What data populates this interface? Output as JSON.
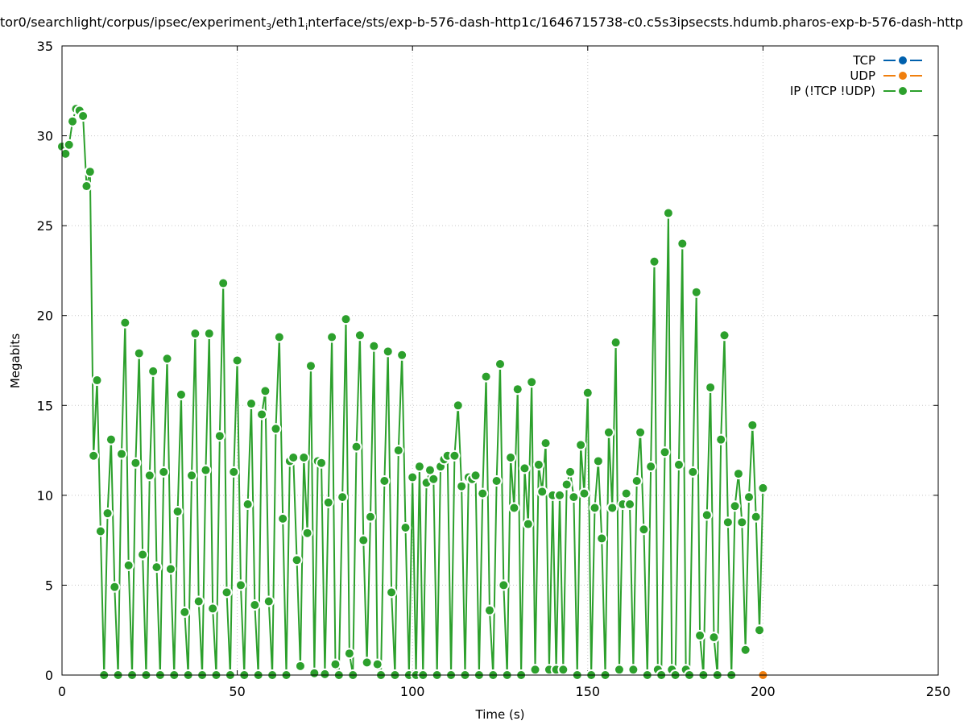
{
  "chart_data": {
    "type": "line",
    "title_parts": {
      "pre": "tor0/searchlight/corpus/ipsec/experiment",
      "sub1": "3",
      "mid": "/eth1",
      "sub2": "i",
      "post": "nterface/sts/exp-b-576-dash-http1c/1646715738-c0.c5s3ipsecsts.hdumb.pharos-exp-b-576-dash-http"
    },
    "xlabel": "Time (s)",
    "ylabel": "Megabits",
    "xlim": [
      0,
      250
    ],
    "ylim": [
      0,
      35
    ],
    "xticks": [
      0,
      50,
      100,
      150,
      200,
      250
    ],
    "yticks": [
      0,
      5,
      10,
      15,
      20,
      25,
      30,
      35
    ],
    "grid": true,
    "legend_position": "top-right",
    "series": [
      {
        "name": "TCP",
        "color": "#0060ad",
        "x_start": 0,
        "x_step": 1,
        "values": []
      },
      {
        "name": "UDP",
        "color": "#f07f0e",
        "x_start": 200,
        "x_step": 1,
        "values": [
          0
        ]
      },
      {
        "name": "IP (!TCP  !UDP)",
        "color": "#2ca02c",
        "x_start": 0,
        "x_step": 1,
        "values": [
          29.4,
          29.0,
          29.5,
          30.8,
          31.5,
          31.4,
          31.1,
          27.2,
          28.0,
          12.2,
          16.4,
          8.0,
          0,
          9.0,
          13.1,
          4.9,
          0,
          12.3,
          19.6,
          6.1,
          0,
          11.8,
          17.9,
          6.7,
          0,
          11.1,
          16.9,
          6.0,
          0,
          11.3,
          17.6,
          5.9,
          0,
          9.1,
          15.6,
          3.5,
          0,
          11.1,
          19.0,
          4.1,
          0,
          11.4,
          19.0,
          3.7,
          0,
          13.3,
          21.8,
          4.6,
          0,
          11.3,
          17.5,
          5.0,
          0,
          9.5,
          15.1,
          3.9,
          0,
          14.5,
          15.8,
          4.1,
          0,
          13.7,
          18.8,
          8.7,
          0,
          11.9,
          12.1,
          6.4,
          0.5,
          12.1,
          7.9,
          17.2,
          0.1,
          11.9,
          11.8,
          0.05,
          9.6,
          18.8,
          0.6,
          0,
          9.9,
          19.8,
          1.2,
          0,
          12.7,
          18.9,
          7.5,
          0.7,
          8.8,
          18.3,
          0.6,
          0,
          10.8,
          18.0,
          4.6,
          0,
          12.5,
          17.8,
          8.2,
          0,
          11.0,
          0,
          11.6,
          0,
          10.7,
          11.4,
          10.9,
          0,
          11.6,
          12.0,
          12.2,
          0,
          12.2,
          15.0,
          10.5,
          0,
          11.0,
          10.9,
          11.1,
          0,
          10.1,
          16.6,
          3.6,
          0,
          10.8,
          17.3,
          5.0,
          0,
          12.1,
          9.3,
          15.9,
          0,
          11.5,
          8.4,
          16.3,
          0.3,
          11.7,
          10.2,
          12.9,
          0.3,
          10.0,
          0.3,
          10.0,
          0.3,
          10.6,
          11.3,
          9.9,
          0,
          12.8,
          10.1,
          15.7,
          0,
          9.3,
          11.9,
          7.6,
          0,
          13.5,
          9.3,
          18.5,
          0.3,
          9.5,
          10.1,
          9.5,
          0.3,
          10.8,
          13.5,
          8.1,
          0,
          11.6,
          23.0,
          0.3,
          0,
          12.4,
          25.7,
          0.3,
          0,
          11.7,
          24.0,
          0.3,
          0,
          11.3,
          21.3,
          2.2,
          0,
          8.9,
          16.0,
          2.1,
          0,
          13.1,
          18.9,
          8.5,
          0,
          9.4,
          11.2,
          8.5,
          1.4,
          9.9,
          13.9,
          8.8,
          2.5,
          10.4
        ]
      }
    ]
  }
}
